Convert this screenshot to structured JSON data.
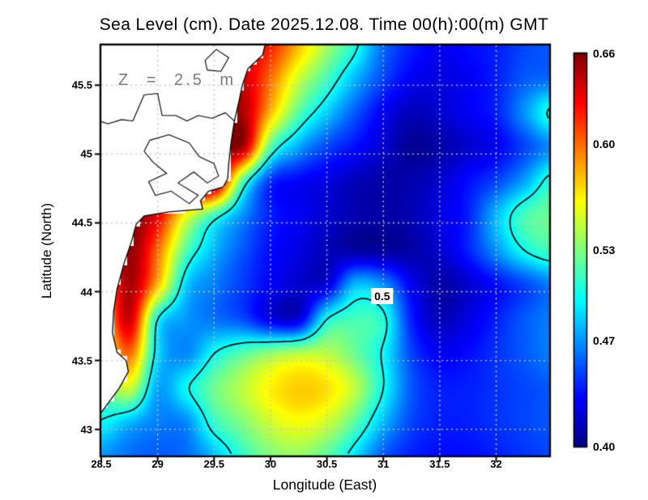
{
  "title": "Sea Level (cm). Date 2025.12.08. Time 00(h):00(m) GMT",
  "annotation": {
    "text": "Z = 2.5 m"
  },
  "axes": {
    "x": {
      "label": "Longitude (East)",
      "ticks": [
        {
          "v": 28.5,
          "label": "28.5"
        },
        {
          "v": 29,
          "label": "29"
        },
        {
          "v": 29.5,
          "label": "29.5"
        },
        {
          "v": 30,
          "label": "30"
        },
        {
          "v": 30.5,
          "label": "30.5"
        },
        {
          "v": 31,
          "label": "31"
        },
        {
          "v": 31.5,
          "label": "31.5"
        },
        {
          "v": 32,
          "label": "32"
        }
      ]
    },
    "y": {
      "label": "Latitude (North)",
      "ticks": [
        {
          "v": 45.5,
          "label": "45.5"
        },
        {
          "v": 45,
          "label": "45"
        },
        {
          "v": 44.5,
          "label": "44.5"
        },
        {
          "v": 44,
          "label": "44"
        },
        {
          "v": 43.5,
          "label": "43.5"
        },
        {
          "v": 43,
          "label": "43"
        }
      ]
    }
  },
  "colorbar": {
    "vmin": 0.4,
    "vmax": 0.66,
    "ticks": [
      {
        "v": 0.66,
        "label": "0.66"
      },
      {
        "v": 0.6,
        "label": "0.60"
      },
      {
        "v": 0.53,
        "label": "0.53"
      },
      {
        "v": 0.47,
        "label": "0.47"
      },
      {
        "v": 0.4,
        "label": "0.40"
      }
    ]
  },
  "contour": {
    "level": 0.5,
    "label": "0.5",
    "label_lon": 30.99,
    "label_lat": 43.97
  },
  "chart_data": {
    "type": "heatmap",
    "title": "Sea Level (cm). Date 2025.12.08. Time 00(h):00(m) GMT",
    "xlabel": "Longitude (East)",
    "ylabel": "Latitude (North)",
    "colormap": "jet",
    "vmin": 0.4,
    "vmax": 0.66,
    "contour_level": 0.5,
    "lon_range": [
      28.5,
      32.47
    ],
    "lat_range": [
      42.81,
      45.79
    ],
    "grid_on": true,
    "lons": [
      28.5,
      28.75,
      29,
      29.25,
      29.5,
      29.75,
      30,
      30.25,
      30.5,
      30.75,
      31,
      31.25,
      31.5,
      31.75,
      32,
      32.25,
      32.5
    ],
    "lats": [
      45.8,
      45.55,
      45.3,
      45.05,
      44.8,
      44.55,
      44.3,
      44.05,
      43.8,
      43.55,
      43.3,
      43.05,
      42.8
    ],
    "values": [
      [
        0.62,
        0.62,
        0.62,
        0.62,
        0.62,
        0.63,
        0.62,
        0.58,
        0.54,
        0.505,
        0.46,
        0.44,
        0.43,
        0.435,
        0.44,
        0.45,
        0.455
      ],
      [
        0.63,
        0.63,
        0.63,
        0.63,
        0.63,
        0.64,
        0.6,
        0.55,
        0.515,
        0.48,
        0.45,
        0.43,
        0.425,
        0.43,
        0.44,
        0.455,
        0.46
      ],
      [
        0.63,
        0.63,
        0.63,
        0.635,
        0.64,
        0.65,
        0.58,
        0.52,
        0.485,
        0.455,
        0.43,
        0.415,
        0.42,
        0.43,
        0.44,
        0.47,
        0.505
      ],
      [
        0.64,
        0.64,
        0.64,
        0.64,
        0.645,
        0.65,
        0.52,
        0.475,
        0.45,
        0.435,
        0.42,
        0.405,
        0.41,
        0.42,
        0.43,
        0.45,
        0.47
      ],
      [
        0.65,
        0.65,
        0.65,
        0.655,
        0.66,
        0.52,
        0.445,
        0.432,
        0.425,
        0.415,
        0.41,
        0.412,
        0.42,
        0.435,
        0.45,
        0.475,
        0.51
      ],
      [
        0.64,
        0.66,
        0.63,
        0.56,
        0.51,
        0.47,
        0.44,
        0.43,
        0.42,
        0.412,
        0.41,
        0.413,
        0.425,
        0.44,
        0.48,
        0.515,
        0.525
      ],
      [
        0.6,
        0.655,
        0.6,
        0.52,
        0.48,
        0.455,
        0.435,
        0.425,
        0.415,
        0.41,
        0.408,
        0.41,
        0.42,
        0.44,
        0.47,
        0.5,
        0.515
      ],
      [
        0.58,
        0.65,
        0.58,
        0.487,
        0.465,
        0.448,
        0.432,
        0.42,
        0.425,
        0.48,
        0.47,
        0.43,
        0.41,
        0.42,
        0.435,
        0.45,
        0.465
      ],
      [
        0.56,
        0.64,
        0.5,
        0.472,
        0.462,
        0.452,
        0.428,
        0.425,
        0.5,
        0.515,
        0.505,
        0.44,
        0.415,
        0.425,
        0.44,
        0.455,
        0.465
      ],
      [
        0.54,
        0.6,
        0.49,
        0.468,
        0.5,
        0.52,
        0.535,
        0.545,
        0.545,
        0.525,
        0.497,
        0.45,
        0.43,
        0.435,
        0.445,
        0.455,
        0.465
      ],
      [
        0.52,
        0.55,
        0.475,
        0.497,
        0.525,
        0.545,
        0.565,
        0.575,
        0.57,
        0.545,
        0.5,
        0.455,
        0.44,
        0.44,
        0.445,
        0.45,
        0.455
      ],
      [
        0.498,
        0.48,
        0.465,
        0.468,
        0.51,
        0.53,
        0.55,
        0.56,
        0.55,
        0.52,
        0.48,
        0.45,
        0.44,
        0.44,
        0.445,
        0.45,
        0.455
      ],
      [
        0.47,
        0.46,
        0.455,
        0.46,
        0.48,
        0.51,
        0.53,
        0.535,
        0.52,
        0.49,
        0.455,
        0.44,
        0.435,
        0.435,
        0.44,
        0.445,
        0.45
      ]
    ],
    "coastline": [
      [
        29.97,
        45.85
      ],
      [
        29.93,
        45.72
      ],
      [
        29.8,
        45.62
      ],
      [
        29.75,
        45.5
      ],
      [
        29.72,
        45.38
      ],
      [
        29.68,
        45.24
      ],
      [
        29.65,
        45.08
      ],
      [
        29.63,
        44.93
      ],
      [
        29.62,
        44.82
      ],
      [
        29.58,
        44.76
      ],
      [
        29.45,
        44.73
      ],
      [
        29.38,
        44.66
      ],
      [
        29.4,
        44.6
      ],
      [
        29.1,
        44.58
      ],
      [
        28.88,
        44.55
      ],
      [
        28.81,
        44.49
      ],
      [
        28.77,
        44.37
      ],
      [
        28.7,
        44.2
      ],
      [
        28.64,
        44.02
      ],
      [
        28.61,
        43.86
      ],
      [
        28.6,
        43.7
      ],
      [
        28.64,
        43.56
      ],
      [
        28.72,
        43.5
      ],
      [
        28.74,
        43.42
      ],
      [
        28.66,
        43.3
      ],
      [
        28.57,
        43.2
      ],
      [
        28.48,
        43.1
      ],
      [
        28.44,
        43.02
      ]
    ],
    "coast_detail": [
      [
        [
          28.4,
          45.26
        ],
        [
          28.56,
          45.22
        ],
        [
          28.68,
          45.25
        ],
        [
          28.78,
          45.24
        ],
        [
          28.88,
          45.43
        ],
        [
          29.0,
          45.44
        ],
        [
          29.04,
          45.28
        ],
        [
          29.16,
          45.28
        ],
        [
          29.26,
          45.24
        ],
        [
          29.36,
          45.28
        ],
        [
          29.48,
          45.26
        ],
        [
          29.6,
          45.3
        ],
        [
          29.68,
          45.24
        ]
      ],
      [
        [
          28.93,
          45.1
        ],
        [
          29.1,
          45.14
        ],
        [
          29.28,
          45.08
        ],
        [
          29.37,
          44.98
        ],
        [
          29.5,
          44.93
        ],
        [
          29.54,
          44.84
        ],
        [
          29.44,
          44.79
        ],
        [
          29.32,
          44.87
        ],
        [
          29.18,
          44.79
        ],
        [
          29.36,
          44.7
        ],
        [
          29.28,
          44.64
        ],
        [
          29.12,
          44.73
        ],
        [
          28.98,
          44.7
        ],
        [
          28.92,
          44.8
        ],
        [
          29.08,
          44.86
        ],
        [
          28.96,
          44.94
        ],
        [
          28.88,
          45.02
        ],
        [
          28.93,
          45.1
        ]
      ],
      [
        [
          29.42,
          45.68
        ],
        [
          29.52,
          45.76
        ],
        [
          29.63,
          45.7
        ],
        [
          29.56,
          45.6
        ],
        [
          29.44,
          45.61
        ],
        [
          29.42,
          45.68
        ]
      ]
    ]
  }
}
